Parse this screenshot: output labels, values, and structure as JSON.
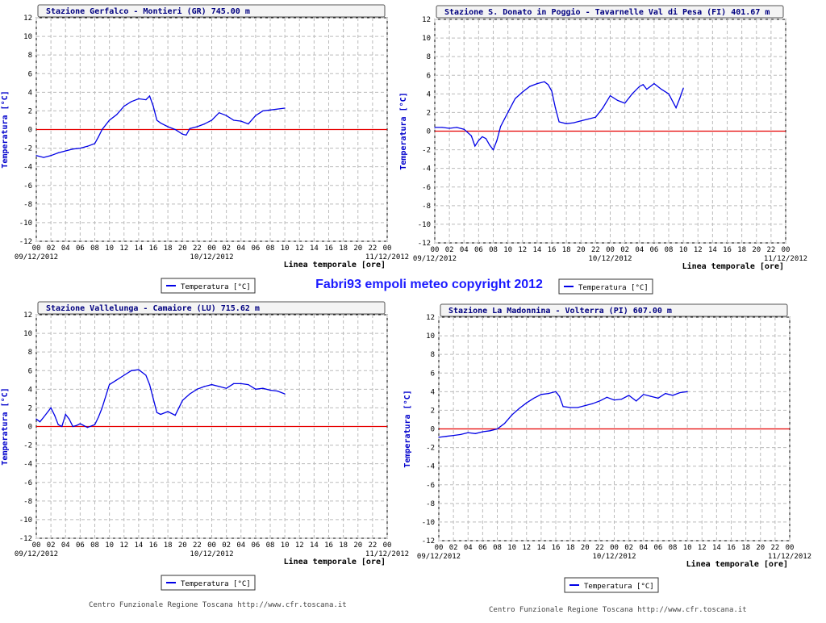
{
  "banner": "Fabri93 empoli meteo copyright 2012",
  "footers": [
    "Centro Funzionale Regione Toscana http://www.cfr.toscana.it",
    "Centro Funzionale Regione Toscana http://www.cfr.toscana.it"
  ],
  "colors": {
    "series": "#0000e6",
    "zero_line": "#e60000",
    "grid": "#bbbbbb",
    "axis_text": "#000000",
    "ylabel": "#0000cc"
  },
  "chart_data": [
    {
      "type": "line",
      "title": "Stazione Gerfalco - Montieri (GR) 745.00 m",
      "ylabel": "Temperatura [°C]",
      "xlabel": "Linea temporale [ore]",
      "ylim": [
        -12,
        12
      ],
      "yticks": [
        -12,
        -10,
        -8,
        -6,
        -4,
        -2,
        0,
        2,
        4,
        6,
        8,
        10,
        12
      ],
      "xlim": [
        0,
        48
      ],
      "xticks": [
        "00",
        "02",
        "04",
        "06",
        "08",
        "10",
        "12",
        "14",
        "16",
        "18",
        "20",
        "22",
        "00",
        "02",
        "04",
        "06",
        "08",
        "10",
        "12",
        "14",
        "16",
        "18",
        "20",
        "22",
        "00"
      ],
      "date_labels": [
        {
          "hour": 0,
          "text": "09/12/2012"
        },
        {
          "hour": 24,
          "text": "10/12/2012"
        },
        {
          "hour": 48,
          "text": "11/12/2012"
        }
      ],
      "legend": "Temperatura [°C]",
      "grid": true,
      "series": [
        {
          "name": "Temperatura [°C]",
          "x": [
            0,
            1,
            2,
            3,
            4,
            5,
            6,
            7,
            8,
            8.5,
            9,
            10,
            11,
            12,
            13,
            14,
            15,
            15.5,
            16,
            16.5,
            17,
            18,
            19,
            20,
            20.5,
            21,
            22,
            23,
            24,
            25,
            26,
            27,
            28,
            29,
            30,
            31,
            32,
            33,
            34
          ],
          "y": [
            -2.8,
            -3.0,
            -2.8,
            -2.5,
            -2.3,
            -2.1,
            -2.0,
            -1.8,
            -1.5,
            -0.8,
            0.0,
            1.0,
            1.6,
            2.5,
            3.0,
            3.3,
            3.2,
            3.6,
            2.5,
            1.0,
            0.7,
            0.3,
            0.0,
            -0.5,
            -0.6,
            0.1,
            0.3,
            0.6,
            1.0,
            1.8,
            1.5,
            1.0,
            0.9,
            0.6,
            1.5,
            2.0,
            2.1,
            2.2,
            2.3
          ]
        }
      ]
    },
    {
      "type": "line",
      "title": "Stazione S. Donato in Poggio - Tavarnelle Val di Pesa (FI) 401.67 m",
      "ylabel": "Temperatura [°C]",
      "xlabel": "Linea temporale [ore]",
      "ylim": [
        -12,
        12
      ],
      "yticks": [
        -12,
        -10,
        -8,
        -6,
        -4,
        -2,
        0,
        2,
        4,
        6,
        8,
        10,
        12
      ],
      "xlim": [
        0,
        48
      ],
      "xticks": [
        "00",
        "02",
        "04",
        "06",
        "08",
        "10",
        "12",
        "14",
        "16",
        "18",
        "20",
        "22",
        "00",
        "02",
        "04",
        "06",
        "08",
        "10",
        "12",
        "14",
        "16",
        "18",
        "20",
        "22",
        "00"
      ],
      "date_labels": [
        {
          "hour": 0,
          "text": "09/12/2012"
        },
        {
          "hour": 24,
          "text": "10/12/2012"
        },
        {
          "hour": 48,
          "text": "11/12/2012"
        }
      ],
      "legend": "Temperatura [°C]",
      "grid": true,
      "series": [
        {
          "name": "Temperatura [°C]",
          "x": [
            0,
            1,
            2,
            3,
            4,
            5,
            5.5,
            6,
            6.5,
            7,
            7.5,
            8,
            8.5,
            9,
            10,
            11,
            12,
            13,
            14,
            15,
            15.5,
            16,
            16.5,
            17,
            18,
            19,
            20,
            21,
            22,
            23,
            24,
            25,
            26,
            27,
            28,
            28.5,
            29,
            30,
            31,
            32,
            33,
            33.5,
            34
          ],
          "y": [
            0.4,
            0.4,
            0.3,
            0.4,
            0.2,
            -0.5,
            -1.6,
            -1.0,
            -0.6,
            -0.8,
            -1.5,
            -2.0,
            -1.0,
            0.5,
            2.0,
            3.5,
            4.2,
            4.8,
            5.1,
            5.3,
            5.0,
            4.3,
            2.5,
            1.0,
            0.8,
            0.9,
            1.1,
            1.3,
            1.5,
            2.5,
            3.8,
            3.3,
            3.0,
            4.0,
            4.8,
            5.0,
            4.5,
            5.1,
            4.5,
            4.0,
            2.5,
            3.5,
            4.6
          ]
        }
      ]
    },
    {
      "type": "line",
      "title": "Stazione Vallelunga - Camaiore (LU) 715.62 m",
      "ylabel": "Temperatura [°C]",
      "xlabel": "Linea temporale [ore]",
      "ylim": [
        -12,
        12
      ],
      "yticks": [
        -12,
        -10,
        -8,
        -6,
        -4,
        -2,
        0,
        2,
        4,
        6,
        8,
        10,
        12
      ],
      "xlim": [
        0,
        48
      ],
      "xticks": [
        "00",
        "02",
        "04",
        "06",
        "08",
        "10",
        "12",
        "14",
        "16",
        "18",
        "20",
        "22",
        "00",
        "02",
        "04",
        "06",
        "08",
        "10",
        "12",
        "14",
        "16",
        "18",
        "20",
        "22",
        "00"
      ],
      "date_labels": [
        {
          "hour": 0,
          "text": "09/12/2012"
        },
        {
          "hour": 24,
          "text": "10/12/2012"
        },
        {
          "hour": 48,
          "text": "11/12/2012"
        }
      ],
      "legend": "Temperatura [°C]",
      "grid": true,
      "series": [
        {
          "name": "Temperatura [°C]",
          "x": [
            0,
            0.5,
            1,
            2,
            2.5,
            3,
            3.5,
            4,
            4.5,
            5,
            5.5,
            6,
            7,
            8,
            8.5,
            9,
            10,
            11,
            12,
            13,
            14,
            15,
            15.5,
            16,
            16.5,
            17,
            18,
            19,
            20,
            21,
            22,
            23,
            24,
            25,
            26,
            27,
            28,
            29,
            30,
            31,
            32,
            33,
            34
          ],
          "y": [
            0.8,
            0.5,
            1.0,
            2.0,
            1.2,
            0.2,
            0.0,
            1.3,
            0.8,
            0.0,
            0.1,
            0.3,
            -0.1,
            0.2,
            1.0,
            2.0,
            4.5,
            5.0,
            5.5,
            6.0,
            6.1,
            5.5,
            4.5,
            3.0,
            1.5,
            1.3,
            1.6,
            1.2,
            2.8,
            3.5,
            4.0,
            4.3,
            4.5,
            4.3,
            4.1,
            4.6,
            4.6,
            4.5,
            4.0,
            4.1,
            3.9,
            3.8,
            3.5
          ]
        }
      ]
    },
    {
      "type": "line",
      "title": "Stazione La Madonnina - Volterra (PI) 607.00 m",
      "ylabel": "Temperatura [°C]",
      "xlabel": "Linea temporale [ore]",
      "ylim": [
        -12,
        12
      ],
      "yticks": [
        -12,
        -10,
        -8,
        -6,
        -4,
        -2,
        0,
        2,
        4,
        6,
        8,
        10,
        12
      ],
      "xlim": [
        0,
        48
      ],
      "xticks": [
        "00",
        "02",
        "04",
        "06",
        "08",
        "10",
        "12",
        "14",
        "16",
        "18",
        "20",
        "22",
        "00",
        "02",
        "04",
        "06",
        "08",
        "10",
        "12",
        "14",
        "16",
        "18",
        "20",
        "22",
        "00"
      ],
      "date_labels": [
        {
          "hour": 0,
          "text": "09/12/2012"
        },
        {
          "hour": 24,
          "text": "10/12/2012"
        },
        {
          "hour": 48,
          "text": "11/12/2012"
        }
      ],
      "legend": "Temperatura [°C]",
      "grid": true,
      "series": [
        {
          "name": "Temperatura [°C]",
          "x": [
            0,
            1,
            2,
            3,
            4,
            5,
            6,
            7,
            8,
            9,
            10,
            11,
            12,
            13,
            14,
            15,
            16,
            16.5,
            17,
            18,
            19,
            20,
            21,
            22,
            23,
            24,
            25,
            26,
            27,
            28,
            29,
            30,
            31,
            32,
            33,
            34
          ],
          "y": [
            -0.9,
            -0.8,
            -0.7,
            -0.6,
            -0.4,
            -0.5,
            -0.3,
            -0.2,
            0.0,
            0.6,
            1.5,
            2.2,
            2.8,
            3.3,
            3.7,
            3.8,
            4.0,
            3.5,
            2.4,
            2.3,
            2.3,
            2.5,
            2.7,
            3.0,
            3.4,
            3.1,
            3.2,
            3.6,
            3.0,
            3.7,
            3.5,
            3.3,
            3.8,
            3.6,
            3.9,
            4.0
          ]
        }
      ]
    }
  ]
}
